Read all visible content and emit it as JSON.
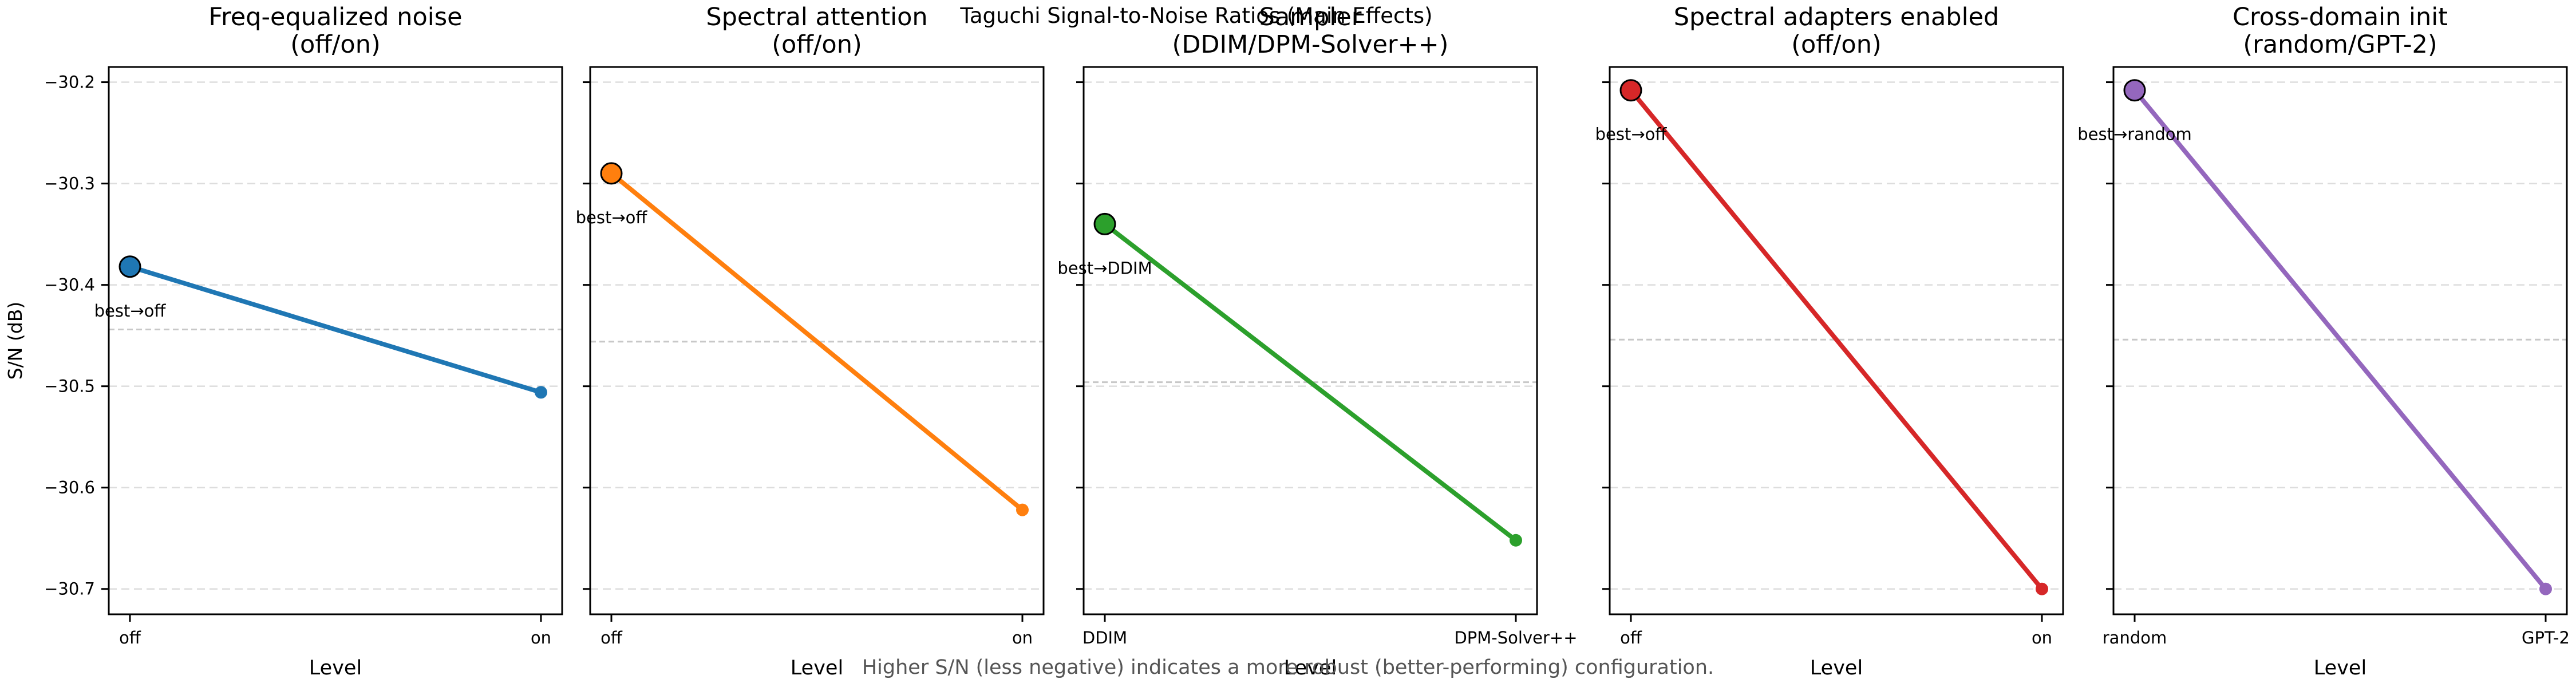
{
  "suptitle": "Taguchi Signal-to-Noise Ratios (Main Effects)",
  "footnote": "Higher S/N (less negative) indicates a more robust (better-performing) configuration.",
  "colors": {
    "axis": "#000000",
    "grid": "#dddddd",
    "mean_line": "#c8c8c8",
    "footnote": "#555555"
  },
  "chart_data": [
    {
      "type": "line",
      "title": "Freq-equalized noise\n(off/on)",
      "xlabel": "Level",
      "ylabel": "S/N (dB)",
      "categories": [
        "off",
        "on"
      ],
      "values": [
        -30.382,
        -30.506
      ],
      "mean": -30.444,
      "best_label": "best→off",
      "best_index": 0,
      "color": "#1f77b4",
      "ylim": [
        -30.725,
        -30.185
      ],
      "yticks": [
        -30.2,
        -30.3,
        -30.4,
        -30.5,
        -30.6,
        -30.7
      ],
      "grid": "y-dashed"
    },
    {
      "type": "line",
      "title": "Spectral attention\n(off/on)",
      "xlabel": "Level",
      "ylabel": "",
      "categories": [
        "off",
        "on"
      ],
      "values": [
        -30.29,
        -30.622
      ],
      "mean": -30.456,
      "best_label": "best→off",
      "best_index": 0,
      "color": "#ff7f0e",
      "ylim": [
        -30.725,
        -30.185
      ],
      "yticks": [
        -30.2,
        -30.3,
        -30.4,
        -30.5,
        -30.6,
        -30.7
      ],
      "grid": "y-dashed"
    },
    {
      "type": "line",
      "title": "Sampler\n(DDIM/DPM-Solver++)",
      "xlabel": "Level",
      "ylabel": "",
      "categories": [
        "DDIM",
        "DPM-Solver++"
      ],
      "values": [
        -30.34,
        -30.652
      ],
      "mean": -30.496,
      "best_label": "best→DDIM",
      "best_index": 0,
      "color": "#2ca02c",
      "ylim": [
        -30.725,
        -30.185
      ],
      "yticks": [
        -30.2,
        -30.3,
        -30.4,
        -30.5,
        -30.6,
        -30.7
      ],
      "grid": "y-dashed"
    },
    {
      "type": "line",
      "title": "Spectral adapters enabled\n(off/on)",
      "xlabel": "Level",
      "ylabel": "",
      "categories": [
        "off",
        "on"
      ],
      "values": [
        -30.208,
        -30.7
      ],
      "mean": -30.454,
      "best_label": "best→off",
      "best_index": 0,
      "color": "#d62728",
      "ylim": [
        -30.725,
        -30.185
      ],
      "yticks": [
        -30.2,
        -30.3,
        -30.4,
        -30.5,
        -30.6,
        -30.7
      ],
      "grid": "y-dashed"
    },
    {
      "type": "line",
      "title": "Cross-domain init\n(random/GPT-2)",
      "xlabel": "Level",
      "ylabel": "",
      "categories": [
        "random",
        "GPT-2"
      ],
      "values": [
        -30.208,
        -30.7
      ],
      "mean": -30.454,
      "best_label": "best→random",
      "best_index": 0,
      "color": "#9467bd",
      "ylim": [
        -30.725,
        -30.185
      ],
      "yticks": [
        -30.2,
        -30.3,
        -30.4,
        -30.5,
        -30.6,
        -30.7
      ],
      "grid": "y-dashed"
    }
  ]
}
